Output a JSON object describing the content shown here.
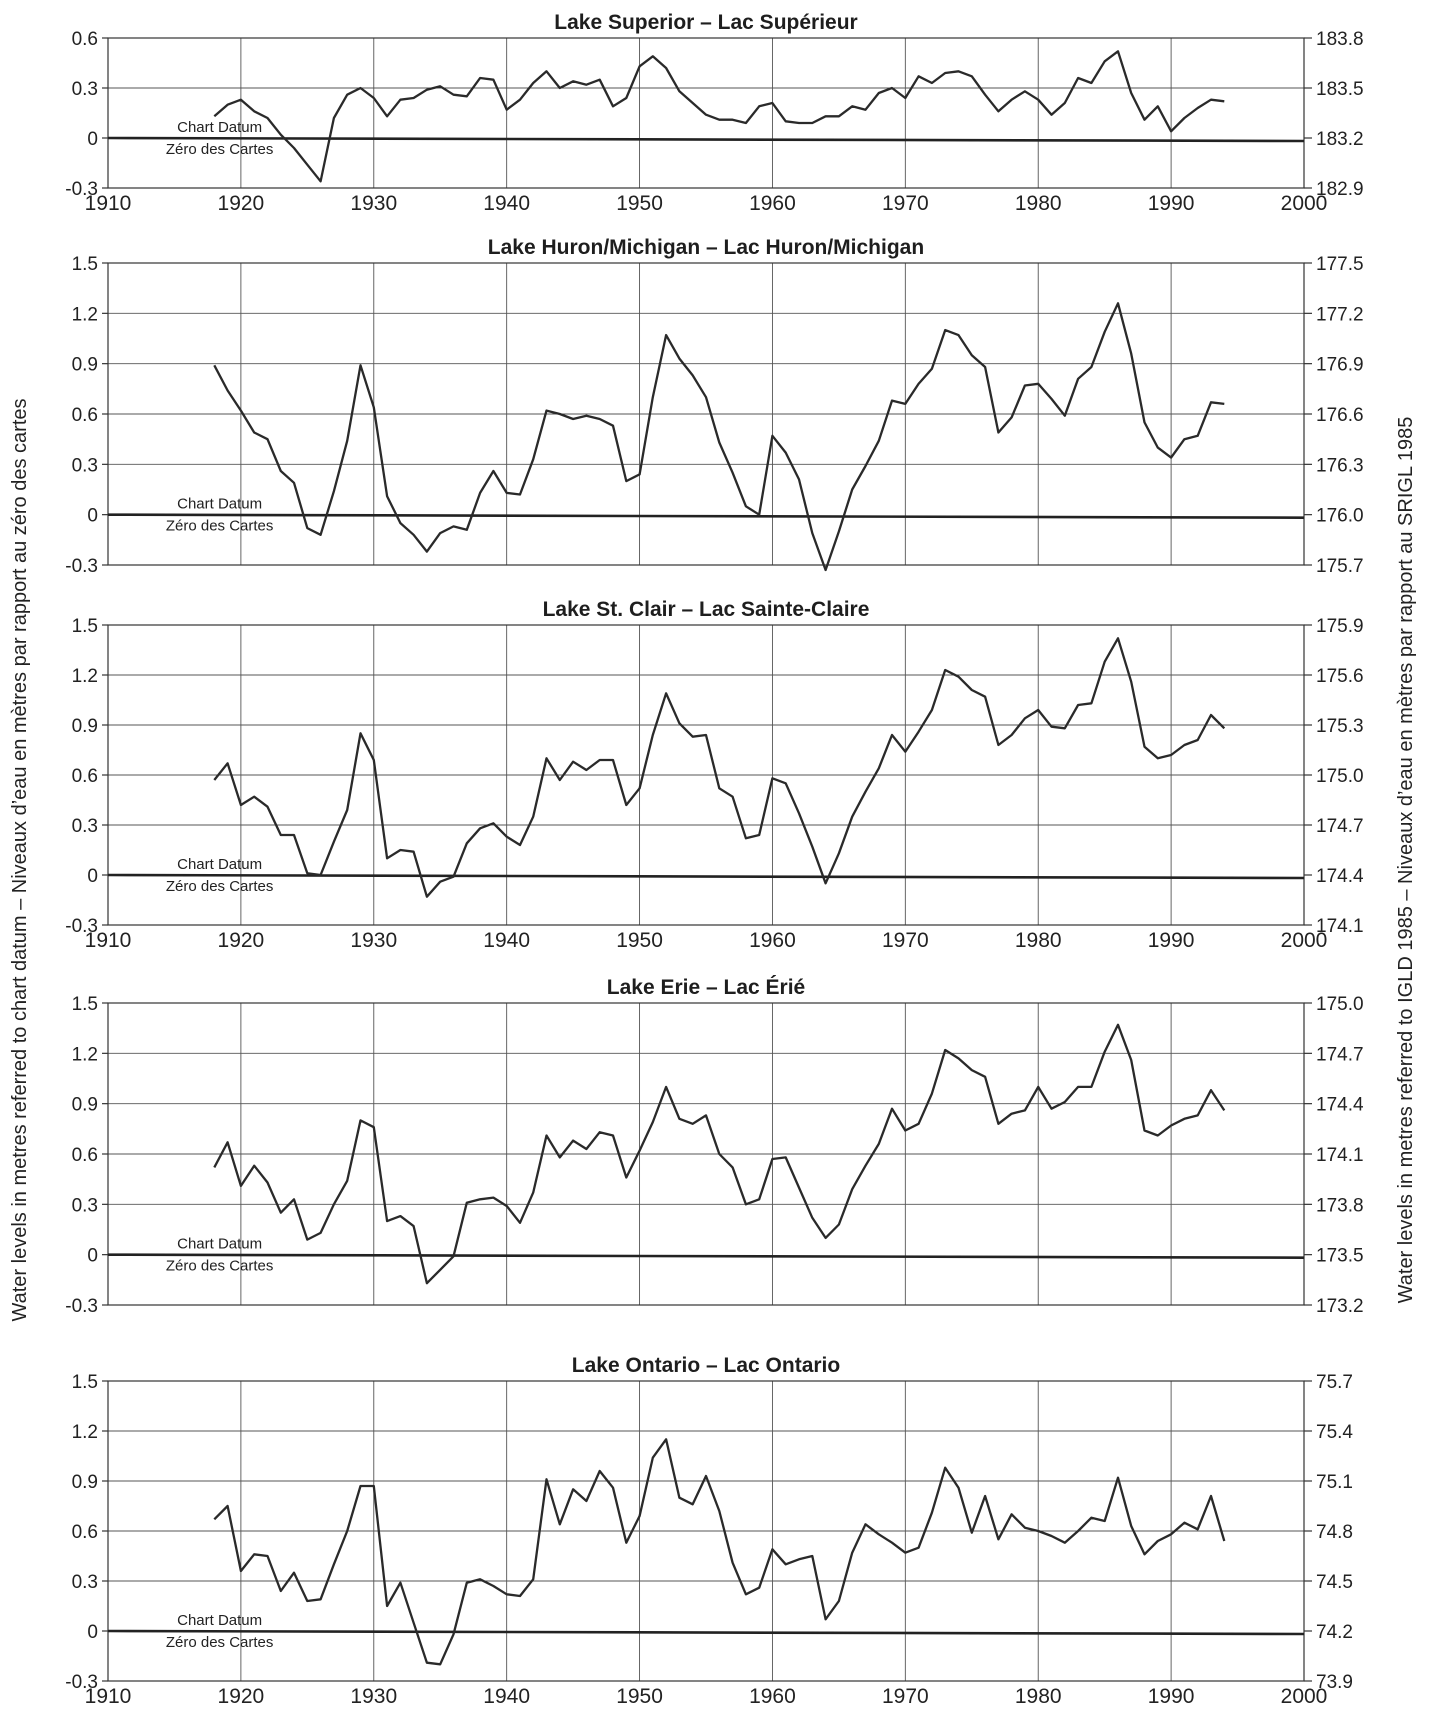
{
  "left_axis_label": "Water levels in metres referred to chart datum – Niveaux d’eau en mètres par rapport au zéro des cartes",
  "right_axis_label": "Water levels in metres referred to IGLD 1985 – Niveaux d’eau en mètres par rapport au SRIGL 1985",
  "datum_label_en": "Chart Datum",
  "datum_label_fr": "Zéro des Cartes",
  "chart_data": [
    {
      "type": "line",
      "title": "Lake Superior – Lac Supérieur",
      "xlim": [
        1910,
        2000
      ],
      "x_ticks": [
        "1910",
        "1920",
        "1930",
        "1940",
        "1950",
        "1960",
        "1970",
        "1980",
        "1990",
        "2000"
      ],
      "show_x_ticks": true,
      "ylim": [
        -0.3,
        0.6
      ],
      "y_ticks": [
        "-0.3",
        "0",
        "0.3",
        "0.6"
      ],
      "y2_ticks": [
        "182.9",
        "183.2",
        "183.5",
        "183.8"
      ],
      "grid": true,
      "series": [
        {
          "x": [
            1918,
            1919,
            1920,
            1921,
            1922,
            1923,
            1924,
            1925,
            1926,
            1927,
            1928,
            1929,
            1930,
            1931,
            1932,
            1933,
            1934,
            1935,
            1936,
            1937,
            1938,
            1939,
            1940,
            1941,
            1942,
            1943,
            1944,
            1945,
            1946,
            1947,
            1948,
            1949,
            1950,
            1951,
            1952,
            1953,
            1954,
            1955,
            1956,
            1957,
            1958,
            1959,
            1960,
            1961,
            1962,
            1963,
            1964,
            1965,
            1966,
            1967,
            1968,
            1969,
            1970,
            1971,
            1972,
            1973,
            1974,
            1975,
            1976,
            1977,
            1978,
            1979,
            1980,
            1981,
            1982,
            1983,
            1984,
            1985,
            1986,
            1987,
            1988,
            1989,
            1990,
            1991,
            1992,
            1993,
            1994
          ],
          "y": [
            0.13,
            0.2,
            0.23,
            0.16,
            0.12,
            0.02,
            -0.06,
            -0.16,
            -0.26,
            0.12,
            0.26,
            0.3,
            0.24,
            0.13,
            0.23,
            0.24,
            0.29,
            0.31,
            0.26,
            0.25,
            0.36,
            0.35,
            0.17,
            0.23,
            0.33,
            0.4,
            0.3,
            0.34,
            0.32,
            0.35,
            0.19,
            0.24,
            0.43,
            0.49,
            0.42,
            0.28,
            0.21,
            0.14,
            0.11,
            0.11,
            0.09,
            0.19,
            0.21,
            0.1,
            0.09,
            0.09,
            0.13,
            0.13,
            0.19,
            0.17,
            0.27,
            0.3,
            0.24,
            0.37,
            0.33,
            0.39,
            0.4,
            0.37,
            0.26,
            0.16,
            0.23,
            0.28,
            0.23,
            0.14,
            0.21,
            0.36,
            0.33,
            0.46,
            0.52,
            0.27,
            0.11,
            0.19,
            0.04,
            0.12,
            0.18,
            0.23,
            0.22
          ]
        }
      ]
    },
    {
      "type": "line",
      "title": "Lake Huron/Michigan – Lac Huron/Michigan",
      "xlim": [
        1910,
        2000
      ],
      "x_ticks": [
        "1910",
        "1920",
        "1930",
        "1940",
        "1950",
        "1960",
        "1970",
        "1980",
        "1990",
        "2000"
      ],
      "show_x_ticks": false,
      "ylim": [
        -0.3,
        1.5
      ],
      "y_ticks": [
        "-0.3",
        "0",
        "0.3",
        "0.6",
        "0.9",
        "1.2",
        "1.5"
      ],
      "y2_ticks": [
        "175.7",
        "176.0",
        "176.3",
        "176.6",
        "176.9",
        "177.2",
        "177.5"
      ],
      "grid": true,
      "series": [
        {
          "x": [
            1918,
            1919,
            1920,
            1921,
            1922,
            1923,
            1924,
            1925,
            1926,
            1927,
            1928,
            1929,
            1930,
            1931,
            1932,
            1933,
            1934,
            1935,
            1936,
            1937,
            1938,
            1939,
            1940,
            1941,
            1942,
            1943,
            1944,
            1945,
            1946,
            1947,
            1948,
            1949,
            1950,
            1951,
            1952,
            1953,
            1954,
            1955,
            1956,
            1957,
            1958,
            1959,
            1960,
            1961,
            1962,
            1963,
            1964,
            1965,
            1966,
            1967,
            1968,
            1969,
            1970,
            1971,
            1972,
            1973,
            1974,
            1975,
            1976,
            1977,
            1978,
            1979,
            1980,
            1981,
            1982,
            1983,
            1984,
            1985,
            1986,
            1987,
            1988,
            1989,
            1990,
            1991,
            1992,
            1993,
            1994
          ],
          "y": [
            0.89,
            0.74,
            0.62,
            0.49,
            0.45,
            0.26,
            0.19,
            -0.08,
            -0.12,
            0.14,
            0.44,
            0.89,
            0.64,
            0.11,
            -0.05,
            -0.12,
            -0.22,
            -0.11,
            -0.07,
            -0.09,
            0.13,
            0.26,
            0.13,
            0.12,
            0.33,
            0.62,
            0.6,
            0.57,
            0.59,
            0.57,
            0.53,
            0.2,
            0.24,
            0.7,
            1.07,
            0.93,
            0.83,
            0.7,
            0.43,
            0.25,
            0.05,
            0.0,
            0.47,
            0.37,
            0.21,
            -0.11,
            -0.33,
            -0.1,
            0.15,
            0.29,
            0.44,
            0.68,
            0.66,
            0.78,
            0.87,
            1.1,
            1.07,
            0.95,
            0.88,
            0.49,
            0.58,
            0.77,
            0.78,
            0.69,
            0.59,
            0.81,
            0.88,
            1.09,
            1.26,
            0.96,
            0.55,
            0.4,
            0.34,
            0.45,
            0.47,
            0.67,
            0.66
          ]
        }
      ]
    },
    {
      "type": "line",
      "title": "Lake St. Clair – Lac Sainte-Claire",
      "xlim": [
        1910,
        2000
      ],
      "x_ticks": [
        "1910",
        "1920",
        "1930",
        "1940",
        "1950",
        "1960",
        "1970",
        "1980",
        "1990",
        "2000"
      ],
      "show_x_ticks": true,
      "ylim": [
        -0.3,
        1.5
      ],
      "y_ticks": [
        "-0.3",
        "0",
        "0.3",
        "0.6",
        "0.9",
        "1.2",
        "1.5"
      ],
      "y2_ticks": [
        "174.1",
        "174.4",
        "174.7",
        "175.0",
        "175.3",
        "175.6",
        "175.9"
      ],
      "grid": true,
      "series": [
        {
          "x": [
            1918,
            1919,
            1920,
            1921,
            1922,
            1923,
            1924,
            1925,
            1926,
            1927,
            1928,
            1929,
            1930,
            1931,
            1932,
            1933,
            1934,
            1935,
            1936,
            1937,
            1938,
            1939,
            1940,
            1941,
            1942,
            1943,
            1944,
            1945,
            1946,
            1947,
            1948,
            1949,
            1950,
            1951,
            1952,
            1953,
            1954,
            1955,
            1956,
            1957,
            1958,
            1959,
            1960,
            1961,
            1962,
            1963,
            1964,
            1965,
            1966,
            1967,
            1968,
            1969,
            1970,
            1971,
            1972,
            1973,
            1974,
            1975,
            1976,
            1977,
            1978,
            1979,
            1980,
            1981,
            1982,
            1983,
            1984,
            1985,
            1986,
            1987,
            1988,
            1989,
            1990,
            1991,
            1992,
            1993,
            1994
          ],
          "y": [
            0.57,
            0.67,
            0.42,
            0.47,
            0.41,
            0.24,
            0.24,
            0.01,
            0.0,
            0.2,
            0.39,
            0.85,
            0.69,
            0.1,
            0.15,
            0.14,
            -0.13,
            -0.04,
            -0.01,
            0.19,
            0.28,
            0.31,
            0.23,
            0.18,
            0.35,
            0.7,
            0.57,
            0.68,
            0.63,
            0.69,
            0.69,
            0.42,
            0.52,
            0.84,
            1.09,
            0.91,
            0.83,
            0.84,
            0.52,
            0.47,
            0.22,
            0.24,
            0.58,
            0.55,
            0.37,
            0.17,
            -0.05,
            0.13,
            0.35,
            0.5,
            0.64,
            0.84,
            0.74,
            0.86,
            0.99,
            1.23,
            1.19,
            1.11,
            1.07,
            0.78,
            0.84,
            0.94,
            0.99,
            0.89,
            0.88,
            1.02,
            1.03,
            1.28,
            1.42,
            1.16,
            0.77,
            0.7,
            0.72,
            0.78,
            0.81,
            0.96,
            0.88
          ]
        }
      ]
    },
    {
      "type": "line",
      "title": "Lake Erie – Lac Érié",
      "xlim": [
        1910,
        2000
      ],
      "x_ticks": [
        "1910",
        "1920",
        "1930",
        "1940",
        "1950",
        "1960",
        "1970",
        "1980",
        "1990",
        "2000"
      ],
      "show_x_ticks": false,
      "ylim": [
        -0.3,
        1.5
      ],
      "y_ticks": [
        "-0.3",
        "0",
        "0.3",
        "0.6",
        "0.9",
        "1.2",
        "1.5"
      ],
      "y2_ticks": [
        "173.2",
        "173.5",
        "173.8",
        "174.1",
        "174.4",
        "174.7",
        "175.0"
      ],
      "grid": true,
      "series": [
        {
          "x": [
            1918,
            1919,
            1920,
            1921,
            1922,
            1923,
            1924,
            1925,
            1926,
            1927,
            1928,
            1929,
            1930,
            1931,
            1932,
            1933,
            1934,
            1935,
            1936,
            1937,
            1938,
            1939,
            1940,
            1941,
            1942,
            1943,
            1944,
            1945,
            1946,
            1947,
            1948,
            1949,
            1950,
            1951,
            1952,
            1953,
            1954,
            1955,
            1956,
            1957,
            1958,
            1959,
            1960,
            1961,
            1962,
            1963,
            1964,
            1965,
            1966,
            1967,
            1968,
            1969,
            1970,
            1971,
            1972,
            1973,
            1974,
            1975,
            1976,
            1977,
            1978,
            1979,
            1980,
            1981,
            1982,
            1983,
            1984,
            1985,
            1986,
            1987,
            1988,
            1989,
            1990,
            1991,
            1992,
            1993,
            1994
          ],
          "y": [
            0.52,
            0.67,
            0.41,
            0.53,
            0.43,
            0.25,
            0.33,
            0.09,
            0.13,
            0.3,
            0.44,
            0.8,
            0.76,
            0.2,
            0.23,
            0.17,
            -0.17,
            -0.09,
            -0.01,
            0.31,
            0.33,
            0.34,
            0.29,
            0.19,
            0.37,
            0.71,
            0.58,
            0.68,
            0.63,
            0.73,
            0.71,
            0.46,
            0.62,
            0.79,
            1.0,
            0.81,
            0.78,
            0.83,
            0.6,
            0.52,
            0.3,
            0.33,
            0.57,
            0.58,
            0.4,
            0.22,
            0.1,
            0.18,
            0.39,
            0.53,
            0.66,
            0.87,
            0.74,
            0.78,
            0.96,
            1.22,
            1.17,
            1.1,
            1.06,
            0.78,
            0.84,
            0.86,
            1.0,
            0.87,
            0.91,
            1.0,
            1.0,
            1.21,
            1.37,
            1.16,
            0.74,
            0.71,
            0.77,
            0.81,
            0.83,
            0.98,
            0.86
          ]
        }
      ]
    },
    {
      "type": "line",
      "title": "Lake Ontario – Lac Ontario",
      "xlim": [
        1910,
        2000
      ],
      "x_ticks": [
        "1910",
        "1920",
        "1930",
        "1940",
        "1950",
        "1960",
        "1970",
        "1980",
        "1990",
        "2000"
      ],
      "show_x_ticks": true,
      "ylim": [
        -0.3,
        1.5
      ],
      "y_ticks": [
        "-0.3",
        "0",
        "0.3",
        "0.6",
        "0.9",
        "1.2",
        "1.5"
      ],
      "y2_ticks": [
        "73.9",
        "74.2",
        "74.5",
        "74.8",
        "75.1",
        "75.4",
        "75.7"
      ],
      "grid": true,
      "series": [
        {
          "x": [
            1918,
            1919,
            1920,
            1921,
            1922,
            1923,
            1924,
            1925,
            1926,
            1927,
            1928,
            1929,
            1930,
            1931,
            1932,
            1933,
            1934,
            1935,
            1936,
            1937,
            1938,
            1939,
            1940,
            1941,
            1942,
            1943,
            1944,
            1945,
            1946,
            1947,
            1948,
            1949,
            1950,
            1951,
            1952,
            1953,
            1954,
            1955,
            1956,
            1957,
            1958,
            1959,
            1960,
            1961,
            1962,
            1963,
            1964,
            1965,
            1966,
            1967,
            1968,
            1969,
            1970,
            1971,
            1972,
            1973,
            1974,
            1975,
            1976,
            1977,
            1978,
            1979,
            1980,
            1981,
            1982,
            1983,
            1984,
            1985,
            1986,
            1987,
            1988,
            1989,
            1990,
            1991,
            1992,
            1993,
            1994
          ],
          "y": [
            0.67,
            0.75,
            0.36,
            0.46,
            0.45,
            0.24,
            0.35,
            0.18,
            0.19,
            0.4,
            0.6,
            0.87,
            0.87,
            0.15,
            0.29,
            0.05,
            -0.19,
            -0.2,
            -0.02,
            0.29,
            0.31,
            0.27,
            0.22,
            0.21,
            0.31,
            0.91,
            0.64,
            0.85,
            0.78,
            0.96,
            0.86,
            0.53,
            0.69,
            1.04,
            1.15,
            0.8,
            0.76,
            0.93,
            0.72,
            0.41,
            0.22,
            0.26,
            0.49,
            0.4,
            0.43,
            0.45,
            0.07,
            0.18,
            0.47,
            0.64,
            0.58,
            0.53,
            0.47,
            0.5,
            0.71,
            0.98,
            0.86,
            0.59,
            0.81,
            0.55,
            0.7,
            0.62,
            0.6,
            0.57,
            0.53,
            0.6,
            0.68,
            0.66,
            0.92,
            0.63,
            0.46,
            0.54,
            0.58,
            0.65,
            0.61,
            0.81,
            0.54
          ]
        }
      ]
    }
  ]
}
